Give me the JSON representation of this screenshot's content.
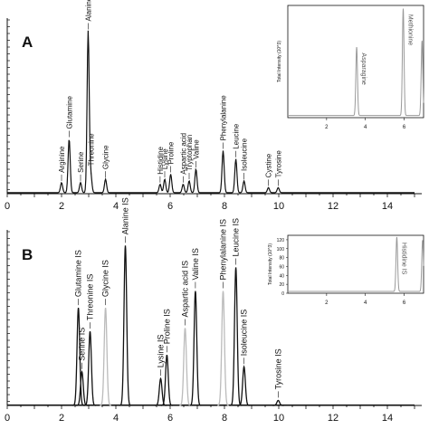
{
  "chart_data": [
    {
      "panel": "A",
      "type": "line",
      "title": "",
      "xlabel": "",
      "ylabel": "",
      "xlim": [
        0,
        15
      ],
      "x_ticks": [
        0,
        2,
        4,
        6,
        8,
        10,
        12,
        14
      ],
      "y_max": 100,
      "grid": false,
      "peaks": [
        {
          "name": "Arginine",
          "x": 2.0,
          "y": 6
        },
        {
          "name": "Glutamine",
          "x": 2.28,
          "y": 32
        },
        {
          "name": "Serine",
          "x": 2.7,
          "y": 6
        },
        {
          "name": "Threonine",
          "x": 3.08,
          "y": 10
        },
        {
          "name": "Alanine",
          "x": 2.98,
          "y": 96
        },
        {
          "name": "Glycine",
          "x": 3.62,
          "y": 8
        },
        {
          "name": "Histidine",
          "x": 5.63,
          "y": 5
        },
        {
          "name": "Lysine",
          "x": 5.8,
          "y": 8
        },
        {
          "name": "Proline",
          "x": 6.02,
          "y": 11
        },
        {
          "name": "Aspartic acid",
          "x": 6.48,
          "y": 5
        },
        {
          "name": "Tryptophan",
          "x": 6.7,
          "y": 7
        },
        {
          "name": "Valine",
          "x": 6.95,
          "y": 14
        },
        {
          "name": "Phenylalanine",
          "x": 7.95,
          "y": 25
        },
        {
          "name": "Leucine",
          "x": 8.42,
          "y": 20
        },
        {
          "name": "Isoleucine",
          "x": 8.72,
          "y": 7
        },
        {
          "name": "Cystine",
          "x": 9.62,
          "y": 3
        },
        {
          "name": "Tyrosine",
          "x": 9.98,
          "y": 3
        }
      ],
      "inset": {
        "ylabel": "Total Intensity (10^3)",
        "xlim": [
          0,
          7
        ],
        "ylim": [
          0,
          210
        ],
        "x_ticks": [
          2,
          4,
          6
        ],
        "peaks": [
          {
            "name": "Asparagine",
            "x": 3.55,
            "y": 128
          },
          {
            "name": "Methionine",
            "x": 5.95,
            "y": 200
          },
          {
            "name": "",
            "x": 6.92,
            "y": 140
          }
        ]
      }
    },
    {
      "panel": "B",
      "type": "line",
      "title": "",
      "xlabel": "",
      "ylabel": "",
      "xlim": [
        0,
        15
      ],
      "x_ticks": [
        0,
        2,
        4,
        6,
        8,
        10,
        12,
        14
      ],
      "y_max": 100,
      "grid": false,
      "peaks": [
        {
          "name": "Glutamine IS",
          "x": 2.62,
          "y": 58,
          "color": "#111111"
        },
        {
          "name": "Serine IS",
          "x": 2.75,
          "y": 20,
          "color": "#111111"
        },
        {
          "name": "Threonine IS",
          "x": 3.05,
          "y": 44,
          "color": "#111111"
        },
        {
          "name": "Glycine IS",
          "x": 3.62,
          "y": 58,
          "color": "#bbbbbb"
        },
        {
          "name": "Alanine IS",
          "x": 4.35,
          "y": 95,
          "color": "#111111"
        },
        {
          "name": "Lysine IS",
          "x": 5.65,
          "y": 16,
          "color": "#111111"
        },
        {
          "name": "Proline IS",
          "x": 5.88,
          "y": 30,
          "color": "#111111"
        },
        {
          "name": "Aspartic acid IS",
          "x": 6.55,
          "y": 46,
          "color": "#bbbbbb"
        },
        {
          "name": "Valine IS",
          "x": 6.93,
          "y": 68,
          "color": "#111111"
        },
        {
          "name": "Phenylalanine IS",
          "x": 7.95,
          "y": 68,
          "color": "#bbbbbb"
        },
        {
          "name": "Leucine IS",
          "x": 8.42,
          "y": 82,
          "color": "#111111"
        },
        {
          "name": "Isoleucine IS",
          "x": 8.72,
          "y": 23,
          "color": "#111111"
        },
        {
          "name": "Tyrosine IS",
          "x": 9.98,
          "y": 3,
          "color": "#111111"
        }
      ],
      "inset": {
        "ylabel": "Total Intensity (10^3)",
        "xlim": [
          0,
          7
        ],
        "ylim": [
          0,
          130
        ],
        "y_ticks": [
          0,
          20,
          40,
          60,
          80,
          100,
          120
        ],
        "x_ticks": [
          2,
          4,
          6
        ],
        "peaks": [
          {
            "name": "Histidine IS",
            "x": 5.62,
            "y": 122
          },
          {
            "name": "",
            "x": 6.95,
            "y": 115
          }
        ]
      }
    }
  ],
  "panels": {
    "a": "A",
    "b": "B"
  }
}
